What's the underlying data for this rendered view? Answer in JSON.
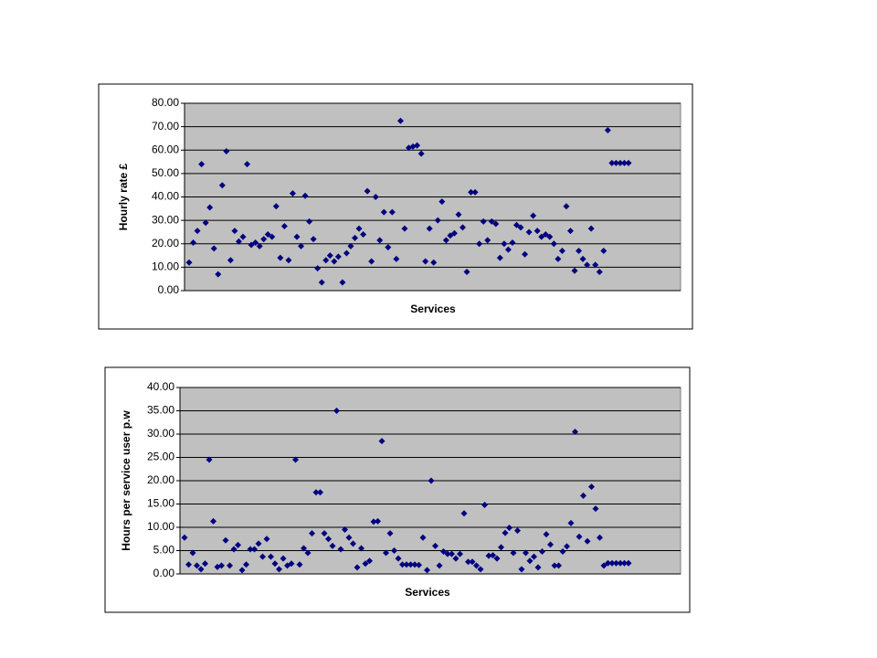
{
  "chart_data": [
    {
      "type": "scatter",
      "x_label": "Services",
      "y_label": "Hourly rate £",
      "color": "#000080",
      "grid": true,
      "ylim": [
        0,
        80
      ],
      "yticks": [
        {
          "value": 0,
          "label": "0.00"
        },
        {
          "value": 10,
          "label": "10.00"
        },
        {
          "value": 20,
          "label": "20.00"
        },
        {
          "value": 30,
          "label": "30.00"
        },
        {
          "value": 40,
          "label": "40.00"
        },
        {
          "value": 50,
          "label": "50.00"
        },
        {
          "value": 60,
          "label": "60.00"
        },
        {
          "value": 70,
          "label": "70.00"
        },
        {
          "value": 80,
          "label": "80.00"
        }
      ],
      "values": [
        12,
        20.5,
        25.5,
        54,
        29,
        35.5,
        18,
        7,
        45,
        59.5,
        13,
        25.5,
        21,
        23,
        54,
        19.5,
        20.5,
        19,
        22,
        24,
        23,
        36,
        14,
        27.5,
        13,
        41.5,
        23,
        19,
        40.5,
        29.5,
        22,
        9.5,
        3.5,
        13,
        15,
        12.5,
        14.5,
        3.5,
        16,
        19,
        22.5,
        26.5,
        24,
        42.5,
        12.5,
        40,
        21.5,
        33.5,
        18.5,
        33.5,
        13.5,
        72.5,
        26.5,
        61,
        61.5,
        62,
        58.5,
        12.5,
        26.5,
        12,
        30,
        38,
        21.5,
        23.5,
        24.5,
        32.5,
        27,
        8,
        42,
        42,
        20,
        29.5,
        21.5,
        29.5,
        28.5,
        14,
        20,
        17.5,
        20.5,
        28,
        27,
        15.5,
        25,
        32,
        25.5,
        23,
        24,
        23,
        20,
        13.5,
        17,
        36,
        25.5,
        8.5,
        17,
        13.5,
        11,
        26.5,
        11,
        8,
        17,
        68.5,
        54.5,
        54.5,
        54.5,
        54.5,
        54.5
      ]
    },
    {
      "type": "scatter",
      "x_label": "Services",
      "y_label": "Hours per service user p.w",
      "color": "#000080",
      "grid": true,
      "ylim": [
        0,
        40
      ],
      "yticks": [
        {
          "value": 0,
          "label": "0.00"
        },
        {
          "value": 5,
          "label": "5.00"
        },
        {
          "value": 10,
          "label": "10.00"
        },
        {
          "value": 15,
          "label": "15.00"
        },
        {
          "value": 20,
          "label": "20.00"
        },
        {
          "value": 25,
          "label": "25.00"
        },
        {
          "value": 30,
          "label": "30.00"
        },
        {
          "value": 35,
          "label": "35.00"
        },
        {
          "value": 40,
          "label": "40.00"
        }
      ],
      "values": [
        7.8,
        2,
        4.5,
        1.8,
        1,
        2.2,
        24.5,
        11.3,
        1.5,
        1.8,
        7.2,
        1.8,
        5.3,
        6.2,
        0.8,
        2,
        5.3,
        5.3,
        6.5,
        3.7,
        7.5,
        3.7,
        2.2,
        1,
        3.3,
        1.8,
        2.2,
        24.5,
        2,
        5.5,
        4.5,
        8.7,
        17.5,
        17.5,
        8.7,
        7.5,
        6,
        35,
        5.3,
        9.5,
        7.8,
        6.5,
        1.4,
        5.5,
        2.2,
        2.8,
        11.2,
        11.3,
        28.5,
        4.5,
        8.7,
        5,
        3.3,
        2,
        2,
        2,
        2,
        1.9,
        7.8,
        0.8,
        20,
        6,
        1.8,
        4.8,
        4.3,
        4.3,
        3.3,
        4.3,
        13,
        2.6,
        2.6,
        1.8,
        1,
        14.8,
        3.9,
        4,
        3.3,
        5.7,
        8.8,
        9.9,
        4.5,
        9.3,
        1,
        4.5,
        2.8,
        3.7,
        1.4,
        4.8,
        8.5,
        6.3,
        1.8,
        1.8,
        4.8,
        5.9,
        10.9,
        30.5,
        8,
        16.8,
        7,
        18.7,
        14,
        7.8,
        1.8,
        2.3,
        2.3,
        2.3,
        2.3,
        2.3,
        2.3
      ]
    }
  ]
}
